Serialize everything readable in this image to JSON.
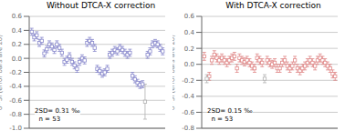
{
  "chart_data": [
    {
      "type": "scatter",
      "title": "Without DTCA-X correction",
      "y_label": "δ³⁰Si (error bars are 2σ)",
      "annotation": "2SD= 0.31 ‰\n  n = 53",
      "x": [
        1,
        2,
        3,
        4,
        5,
        6,
        7,
        8,
        9,
        10,
        11,
        12,
        13,
        14,
        15,
        16,
        17,
        18,
        19,
        20,
        21,
        22,
        23,
        24,
        25,
        26,
        27,
        28,
        29,
        30,
        31,
        32,
        33,
        34,
        35,
        36,
        37,
        38,
        39,
        40,
        41,
        42,
        43,
        44,
        45,
        46,
        47,
        48,
        49,
        50,
        51,
        52,
        53
      ],
      "values": [
        0.38,
        0.3,
        0.33,
        0.22,
        0.25,
        0.07,
        0.13,
        0.2,
        0.17,
        0.12,
        0.2,
        0.15,
        0.08,
        -0.05,
        -0.02,
        0.03,
        -0.05,
        -0.1,
        -0.15,
        -0.05,
        0.0,
        -0.03,
        0.22,
        0.25,
        0.22,
        0.15,
        -0.15,
        -0.18,
        -0.22,
        -0.2,
        -0.15,
        0.05,
        0.08,
        0.12,
        0.1,
        0.15,
        0.12,
        0.08,
        0.05,
        0.08,
        -0.25,
        -0.3,
        -0.35,
        -0.38,
        -0.37,
        -0.62,
        0.05,
        0.1,
        0.2,
        0.22,
        0.2,
        0.15,
        0.1
      ],
      "errors": [
        0.05,
        0.05,
        0.05,
        0.05,
        0.05,
        0.05,
        0.05,
        0.05,
        0.05,
        0.05,
        0.05,
        0.05,
        0.05,
        0.05,
        0.05,
        0.05,
        0.05,
        0.05,
        0.05,
        0.05,
        0.05,
        0.05,
        0.05,
        0.05,
        0.05,
        0.05,
        0.05,
        0.05,
        0.05,
        0.05,
        0.05,
        0.05,
        0.05,
        0.05,
        0.05,
        0.05,
        0.05,
        0.05,
        0.05,
        0.05,
        0.05,
        0.05,
        0.05,
        0.05,
        0.05,
        0.25,
        0.05,
        0.05,
        0.05,
        0.05,
        0.05,
        0.05,
        0.05
      ],
      "colors": [
        "#8888cc",
        "#8888cc",
        "#8888cc",
        "#8888cc",
        "#8888cc",
        "#8888cc",
        "#8888cc",
        "#8888cc",
        "#8888cc",
        "#8888cc",
        "#8888cc",
        "#8888cc",
        "#8888cc",
        "#8888cc",
        "#8888cc",
        "#8888cc",
        "#8888cc",
        "#8888cc",
        "#8888cc",
        "#8888cc",
        "#8888cc",
        "#8888cc",
        "#8888cc",
        "#8888cc",
        "#8888cc",
        "#8888cc",
        "#8888cc",
        "#8888cc",
        "#8888cc",
        "#8888cc",
        "#8888cc",
        "#8888cc",
        "#8888cc",
        "#8888cc",
        "#8888cc",
        "#8888cc",
        "#8888cc",
        "#8888cc",
        "#8888cc",
        "#8888cc",
        "#8888cc",
        "#8888cc",
        "#8888cc",
        "#8888cc",
        "#8888cc",
        "#b0b0b0",
        "#8888cc",
        "#8888cc",
        "#8888cc",
        "#8888cc",
        "#8888cc",
        "#8888cc",
        "#8888cc"
      ],
      "marker": "square",
      "xlim": [
        0,
        54
      ],
      "ylim": [
        -1.0,
        0.6
      ],
      "yticks": [
        {
          "value": -1.0,
          "label": "-1.0"
        },
        -0.8,
        -0.6,
        -0.4,
        -0.2,
        {
          "value": 0,
          "label": "0.0"
        },
        0.2,
        0.4,
        0.6
      ],
      "grid": true,
      "tick_labels": "y"
    },
    {
      "type": "scatter",
      "title": "With DTCA-X correction",
      "y_label": "δ³⁰Si (error bars are 2σ)",
      "annotation": "2SD= 0.15 ‰\n  n = 53",
      "x": [
        1,
        2,
        3,
        4,
        5,
        6,
        7,
        8,
        9,
        10,
        11,
        12,
        13,
        14,
        15,
        16,
        17,
        18,
        19,
        20,
        21,
        22,
        23,
        24,
        25,
        26,
        27,
        28,
        29,
        30,
        31,
        32,
        33,
        34,
        35,
        36,
        37,
        38,
        39,
        40,
        41,
        42,
        43,
        44,
        45,
        46,
        47,
        48,
        49,
        50,
        51,
        52,
        53
      ],
      "values": [
        0.1,
        -0.18,
        -0.15,
        0.05,
        0.12,
        0.08,
        0.05,
        0.08,
        0.05,
        0.02,
        0.05,
        0.08,
        0.1,
        -0.05,
        0.08,
        0.05,
        0.03,
        0.05,
        0.02,
        -0.02,
        -0.05,
        0.08,
        0.05,
        0.02,
        -0.18,
        0.05,
        0.02,
        0.0,
        0.02,
        -0.05,
        -0.05,
        0.02,
        0.05,
        -0.02,
        -0.05,
        -0.02,
        0.05,
        -0.05,
        -0.08,
        -0.05,
        -0.02,
        0.02,
        0.05,
        0.02,
        -0.02,
        0.05,
        0.08,
        0.05,
        0.02,
        -0.02,
        -0.05,
        -0.12,
        -0.15
      ],
      "errors": [
        0.05,
        0.05,
        0.05,
        0.05,
        0.05,
        0.05,
        0.05,
        0.05,
        0.05,
        0.05,
        0.05,
        0.05,
        0.05,
        0.05,
        0.05,
        0.05,
        0.05,
        0.05,
        0.05,
        0.05,
        0.05,
        0.05,
        0.05,
        0.05,
        0.05,
        0.05,
        0.05,
        0.05,
        0.05,
        0.05,
        0.05,
        0.05,
        0.05,
        0.05,
        0.05,
        0.05,
        0.05,
        0.05,
        0.05,
        0.05,
        0.05,
        0.05,
        0.05,
        0.05,
        0.05,
        0.05,
        0.05,
        0.05,
        0.05,
        0.05,
        0.05,
        0.05,
        0.05
      ],
      "colors": [
        "#e08888",
        "#b0b0b0",
        "#e08888",
        "#e08888",
        "#e08888",
        "#e08888",
        "#e08888",
        "#e08888",
        "#e08888",
        "#e08888",
        "#e08888",
        "#e08888",
        "#e08888",
        "#e08888",
        "#e08888",
        "#e08888",
        "#e08888",
        "#e08888",
        "#e08888",
        "#e08888",
        "#e08888",
        "#e08888",
        "#e08888",
        "#e08888",
        "#b0b0b0",
        "#e08888",
        "#e08888",
        "#e08888",
        "#e08888",
        "#e08888",
        "#e08888",
        "#e08888",
        "#e08888",
        "#e08888",
        "#e08888",
        "#e08888",
        "#e08888",
        "#e08888",
        "#e08888",
        "#e08888",
        "#e08888",
        "#e08888",
        "#e08888",
        "#e08888",
        "#e08888",
        "#e08888",
        "#e08888",
        "#e08888",
        "#e08888",
        "#e08888",
        "#e08888",
        "#e08888",
        "#e08888"
      ],
      "marker": "square",
      "xlim": [
        0,
        54
      ],
      "ylim": [
        -0.8,
        0.6
      ],
      "yticks": [
        -0.8,
        -0.6,
        -0.4,
        -0.2,
        {
          "value": 0,
          "label": "0.0"
        },
        0.2,
        0.4,
        0.6
      ],
      "grid": true,
      "tick_labels": "y"
    }
  ]
}
